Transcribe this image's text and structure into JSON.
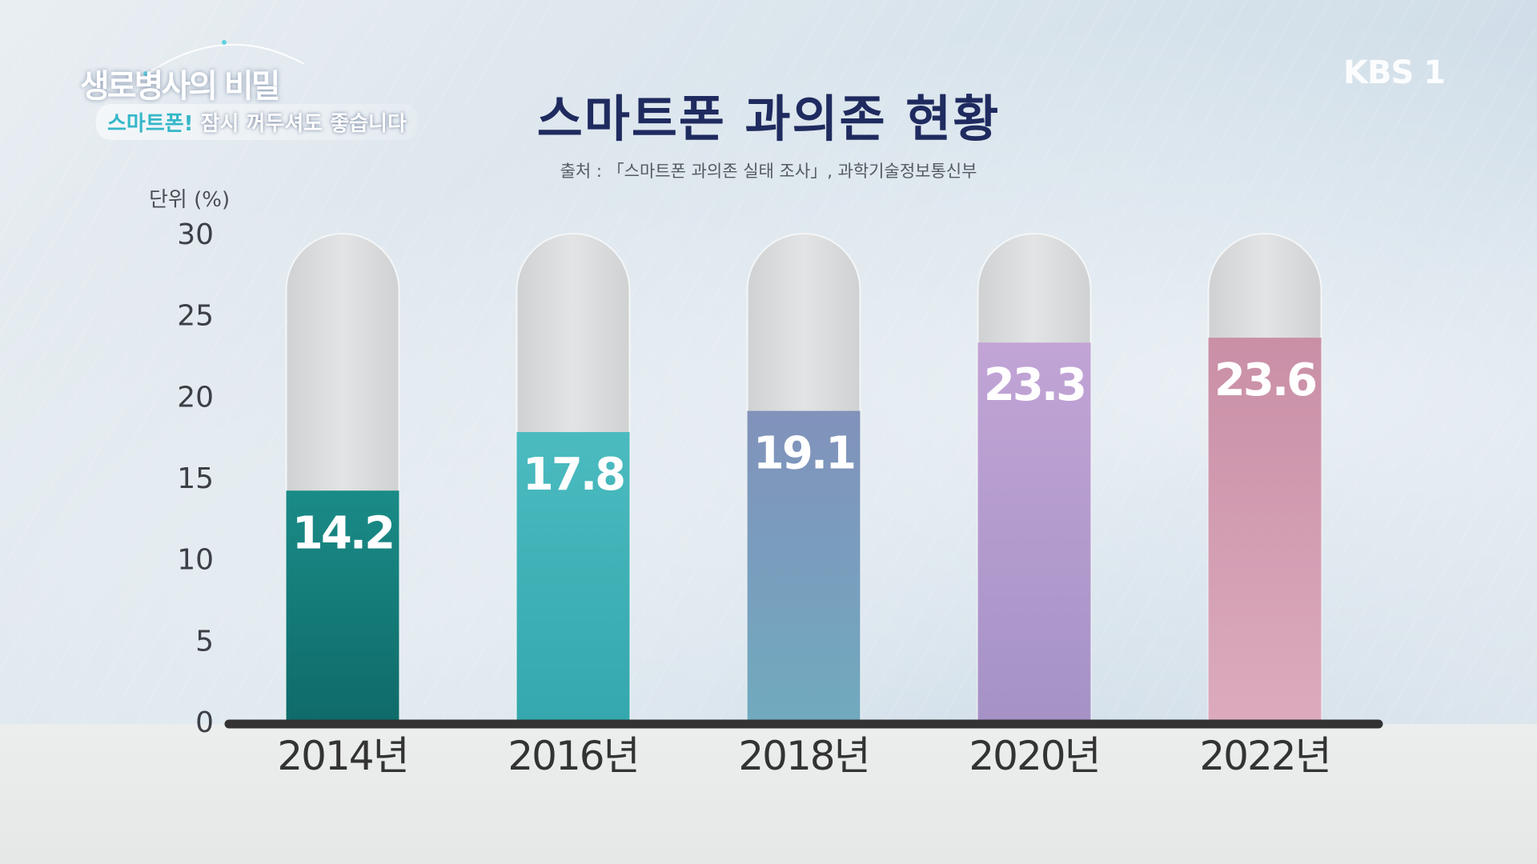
{
  "program": {
    "title": "생로병사의 비밀",
    "subtitle_highlight": "스마트폰!",
    "subtitle_rest": " 잠시 꺼두셔도 좋습니다"
  },
  "broadcaster": "KBS 1",
  "colors": {
    "title": "#1f2b5f",
    "axis": "#333333",
    "empty_bar": "#dadcdd"
  },
  "chart_data": {
    "type": "bar",
    "title": "스마트폰 과의존 현황",
    "source": "출처 : 「스마트폰 과의존 실태 조사」, 과학기술정보통신부",
    "ylabel": "단위 (%)",
    "xlabel": "",
    "ylim": [
      0,
      30
    ],
    "yticks": [
      0,
      5,
      10,
      15,
      20,
      25,
      30
    ],
    "grid": false,
    "categories": [
      "2014년",
      "2016년",
      "2018년",
      "2020년",
      "2022년"
    ],
    "values": [
      14.2,
      17.8,
      19.1,
      23.3,
      23.6
    ],
    "value_labels": [
      "14.2",
      "17.8",
      "19.1",
      "23.3",
      "23.6"
    ],
    "bar_colors": [
      [
        "#1a8b87",
        "#0f6b69"
      ],
      [
        "#4bbbc0",
        "#33a8ad"
      ],
      [
        "#8192bb",
        "#71aabf"
      ],
      [
        "#c2a4d6",
        "#a592c6"
      ],
      [
        "#c98fa6",
        "#dcaabd"
      ]
    ]
  }
}
